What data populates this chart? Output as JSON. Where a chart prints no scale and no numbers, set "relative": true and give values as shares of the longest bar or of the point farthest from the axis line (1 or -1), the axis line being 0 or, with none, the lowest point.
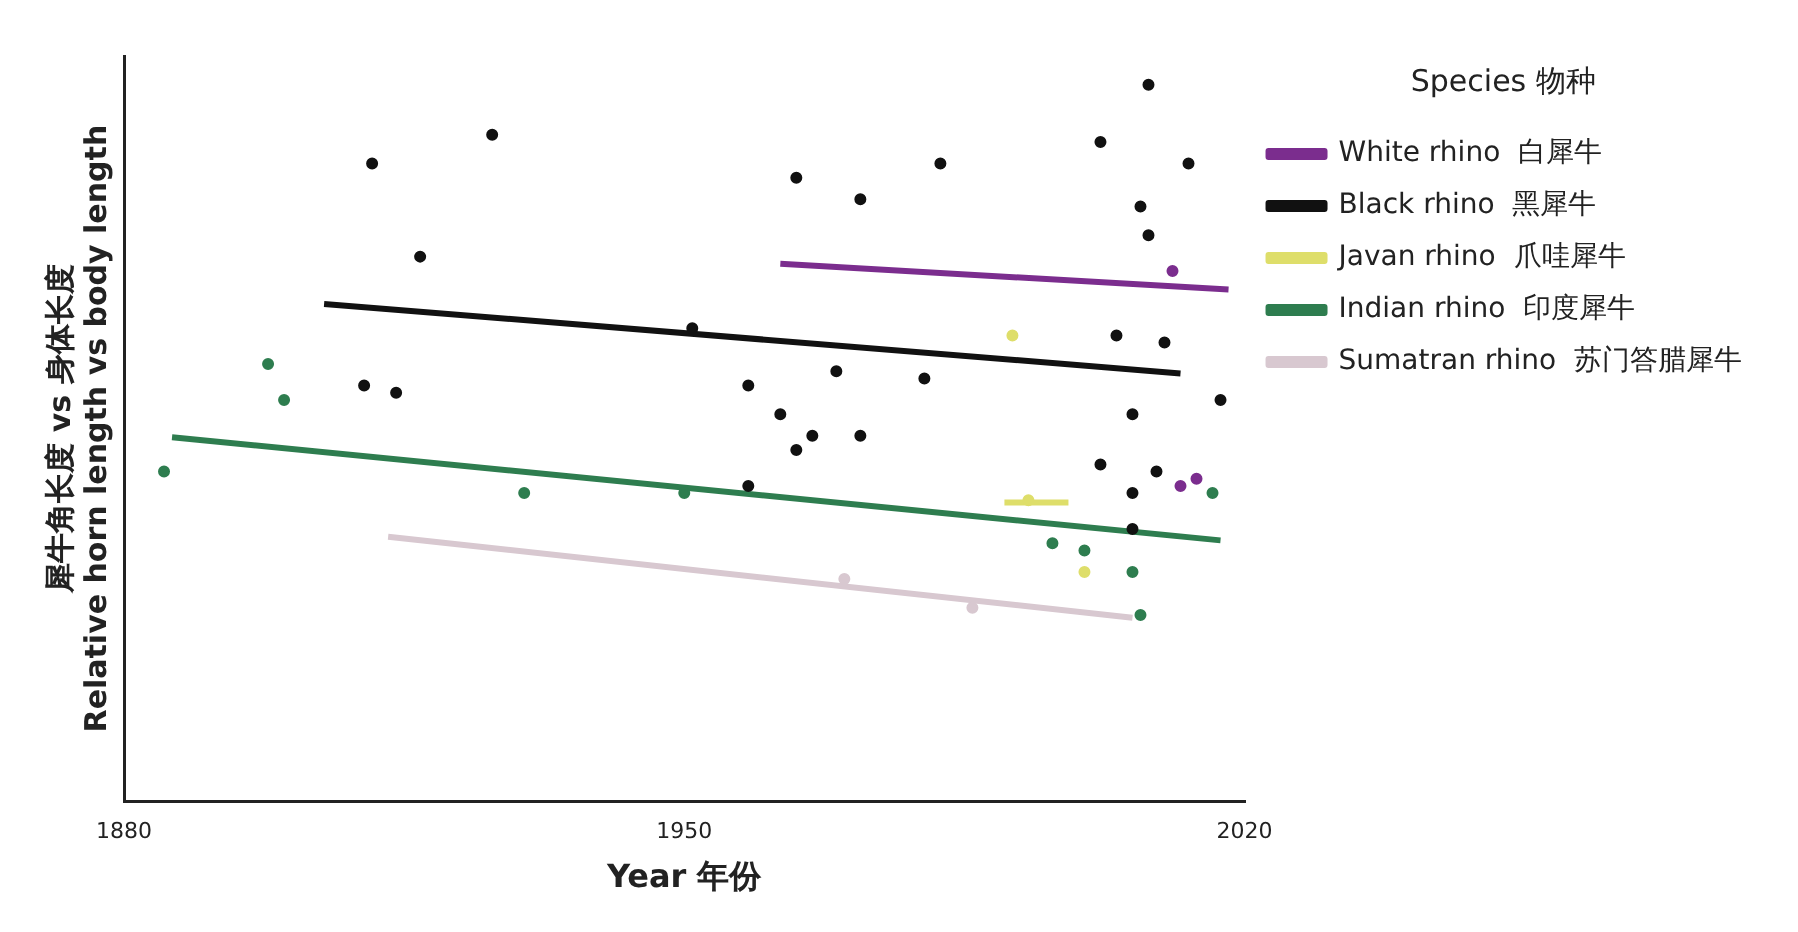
{
  "chart_data": {
    "type": "scatter",
    "relative": true,
    "xlabel": "Year 年份",
    "ylabel": "犀牛角长度 vs 身体长度\nRelative horn length vs body length",
    "legend_title": "Species 物种",
    "xlim": [
      1880,
      2020
    ],
    "xticks": [
      1880,
      1950,
      2020
    ],
    "grid": false,
    "legend": "right",
    "tick_labels": "x",
    "marker": "circle",
    "series": [
      {
        "color": "#111111",
        "x": [
          1911,
          1926,
          1917,
          1910,
          1914,
          1964,
          1972,
          1982,
          1951,
          1958,
          1962,
          1969,
          1980,
          1966,
          1964,
          1972,
          1958,
          2002,
          2008,
          2013,
          2007,
          2008,
          2010,
          2004,
          2006,
          2006,
          2006,
          2002,
          2009,
          2017
        ],
        "values": [
          0.89,
          0.93,
          0.76,
          0.58,
          0.57,
          0.87,
          0.84,
          0.89,
          0.66,
          0.58,
          0.54,
          0.6,
          0.59,
          0.51,
          0.49,
          0.51,
          0.44,
          0.92,
          1,
          0.89,
          0.83,
          0.79,
          0.64,
          0.65,
          0.54,
          0.43,
          0.38,
          0.47,
          0.46,
          0.56
        ]
      },
      {
        "color": "#7b2d8e",
        "x": [
          2012,
          2011,
          2014
        ],
        "values": [
          0.44,
          0.74,
          0.45
        ]
      },
      {
        "color": "#2e7d4f",
        "x": [
          1898,
          1900,
          1885,
          1930,
          1950,
          1996,
          2000,
          2006,
          2007,
          2016
        ],
        "values": [
          0.61,
          0.56,
          0.46,
          0.43,
          0.43,
          0.36,
          0.35,
          0.32,
          0.26,
          0.43
        ]
      },
      {
        "color": "#dede6a",
        "x": [
          1991,
          1993,
          2000
        ],
        "values": [
          0.65,
          0.42,
          0.32
        ]
      },
      {
        "color": "#d8c8d0",
        "x": [
          1986,
          1970
        ],
        "values": [
          0.27,
          0.31
        ]
      },
      {
        "type": "line",
        "marker": "none",
        "name": "White rhino  白犀牛",
        "color": "#7b2d8e",
        "x": [
          1962,
          2018
        ],
        "values": [
          0.75,
          0.714
        ]
      },
      {
        "type": "line",
        "marker": "none",
        "name": "Black rhino  黑犀牛",
        "color": "#111111",
        "x": [
          1905,
          2012
        ],
        "values": [
          0.694,
          0.597
        ]
      },
      {
        "type": "line",
        "marker": "none",
        "name": "Javan rhino  爪哇犀牛",
        "color": "#dede6a",
        "x": [
          1990,
          1998
        ],
        "values": [
          0.417,
          0.417
        ]
      },
      {
        "type": "line",
        "marker": "none",
        "name": "Indian rhino  印度犀牛",
        "color": "#2e7d4f",
        "x": [
          1886,
          2017
        ],
        "values": [
          0.508,
          0.364
        ]
      },
      {
        "type": "line",
        "marker": "none",
        "name": "Sumatran rhino  苏门答腊犀牛",
        "color": "#d8c8d0",
        "x": [
          1913,
          2006
        ],
        "values": [
          0.369,
          0.256
        ]
      }
    ]
  }
}
